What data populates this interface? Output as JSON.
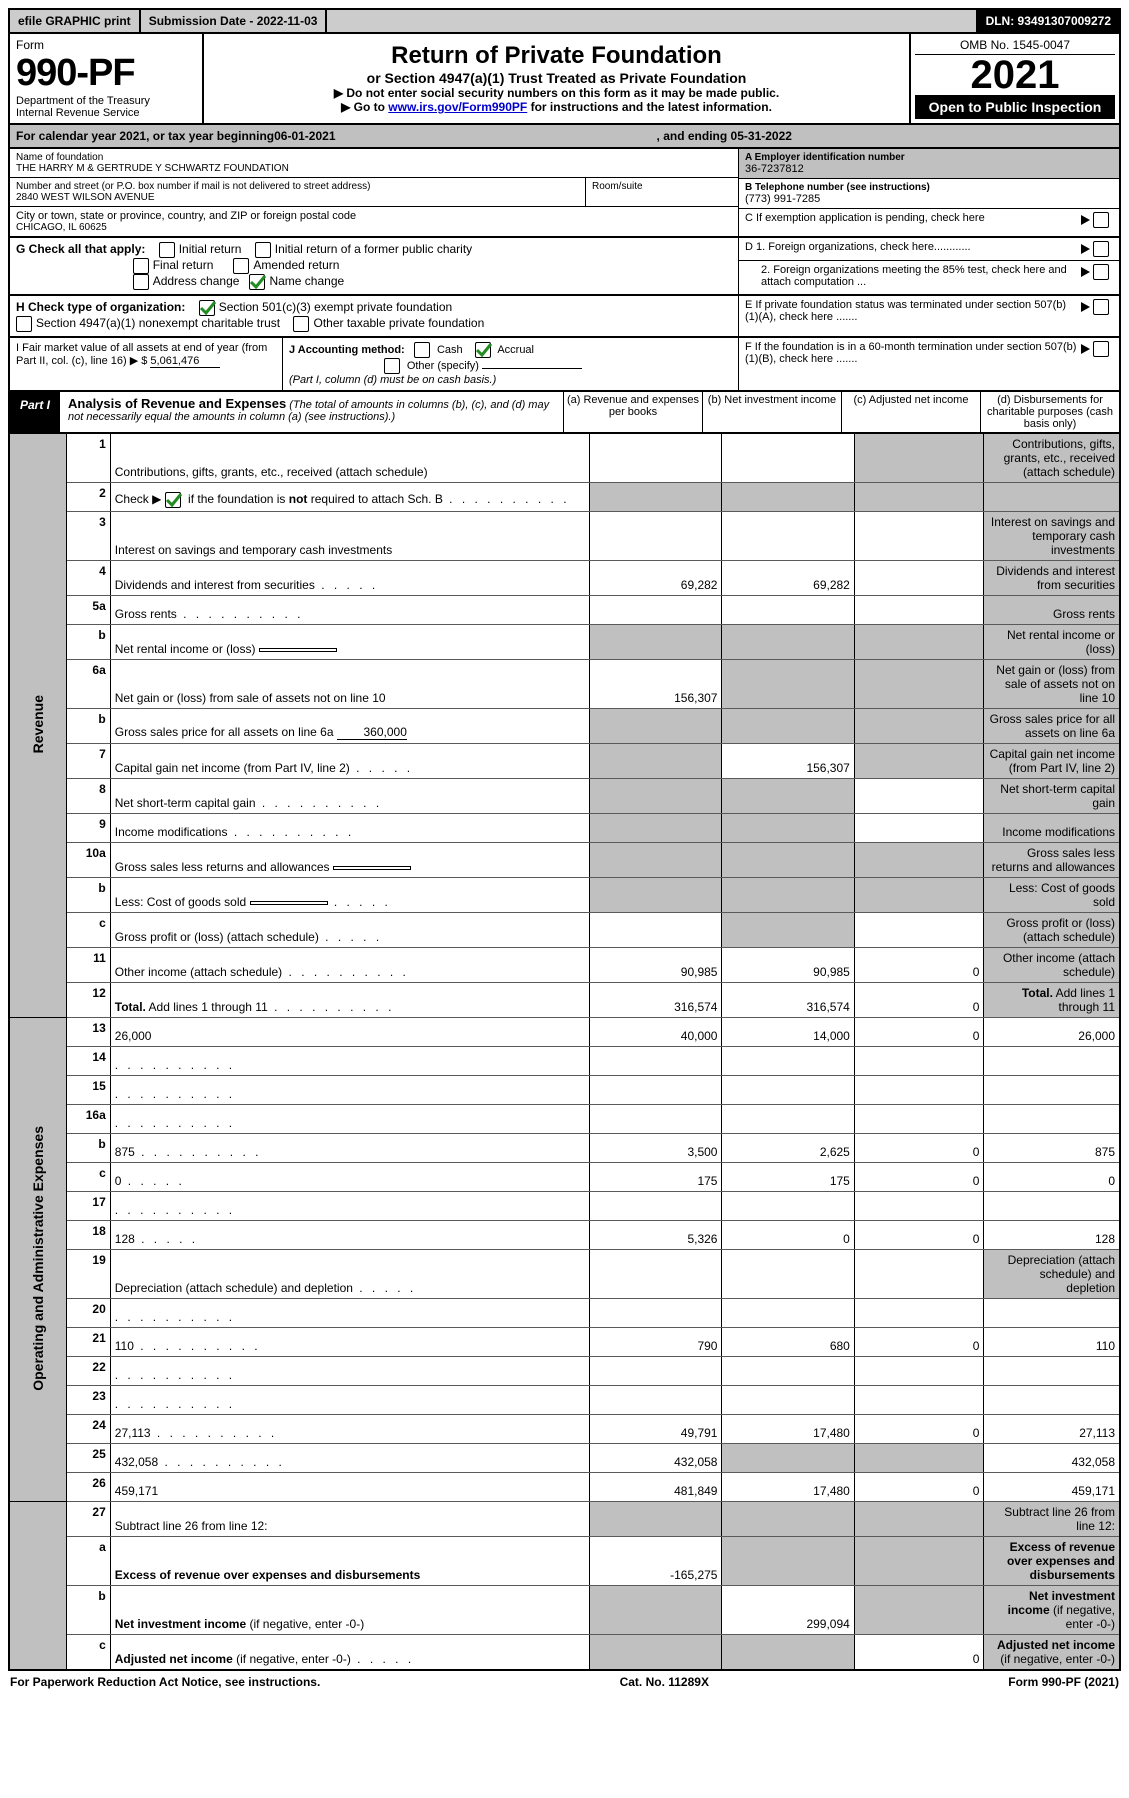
{
  "colors": {
    "header_gray": "#cccccc",
    "shade_gray": "#c0c0c0",
    "black": "#000000",
    "white": "#ffffff",
    "link_blue": "#0000cc",
    "check_green": "#228b22"
  },
  "top_bar": {
    "efile": "efile GRAPHIC print",
    "sub_date_label": "Submission Date - 2022-11-03",
    "dln": "DLN: 93491307009272"
  },
  "header": {
    "form_word": "Form",
    "form_num": "990-PF",
    "dept": "Department of the Treasury",
    "irs": "Internal Revenue Service",
    "title": "Return of Private Foundation",
    "subtitle": "or Section 4947(a)(1) Trust Treated as Private Foundation",
    "warn1": "▶ Do not enter social security numbers on this form as it may be made public.",
    "warn2_pre": "▶ Go to ",
    "warn2_link": "www.irs.gov/Form990PF",
    "warn2_post": " for instructions and the latest information.",
    "omb": "OMB No. 1545-0047",
    "year": "2021",
    "open": "Open to Public Inspection"
  },
  "calendar": {
    "pre": "For calendar year 2021, or tax year beginning ",
    "begin": "06-01-2021",
    "mid": ", and ending ",
    "end": "05-31-2022"
  },
  "entity": {
    "name_label": "Name of foundation",
    "name": "THE HARRY M & GERTRUDE Y SCHWARTZ FOUNDATION",
    "addr_label": "Number and street (or P.O. box number if mail is not delivered to street address)",
    "addr": "2840 WEST WILSON AVENUE",
    "room_label": "Room/suite",
    "city_label": "City or town, state or province, country, and ZIP or foreign postal code",
    "city": "CHICAGO, IL  60625",
    "a_label": "A Employer identification number",
    "a_val": "36-7237812",
    "b_label": "B Telephone number (see instructions)",
    "b_val": "(773) 991-7285",
    "c_label": "C If exemption application is pending, check here"
  },
  "g": {
    "label": "G Check all that apply:",
    "initial": "Initial return",
    "initial_former": "Initial return of a former public charity",
    "final": "Final return",
    "amended": "Amended return",
    "addr_change": "Address change",
    "name_change": "Name change",
    "name_change_checked": true
  },
  "h": {
    "label": "H Check type of organization:",
    "s501": "Section 501(c)(3) exempt private foundation",
    "s501_checked": true,
    "s4947": "Section 4947(a)(1) nonexempt charitable trust",
    "other_tax": "Other taxable private foundation"
  },
  "i": {
    "pre": "I Fair market value of all assets at end of year (from Part II, col. (c), line 16) ▶ $",
    "val": "5,061,476"
  },
  "j": {
    "label": "J Accounting method:",
    "cash": "Cash",
    "accrual": "Accrual",
    "accrual_checked": true,
    "other": "Other (specify)",
    "note": "(Part I, column (d) must be on cash basis.)"
  },
  "d": {
    "d1": "D 1. Foreign organizations, check here............",
    "d2": "2. Foreign organizations meeting the 85% test, check here and attach computation ...",
    "e": "E  If private foundation status was terminated under section 507(b)(1)(A), check here .......",
    "f": "F  If the foundation is in a 60-month termination under section 507(b)(1)(B), check here ......."
  },
  "part1": {
    "label": "Part I",
    "title": "Analysis of Revenue and Expenses",
    "title_note": " (The total of amounts in columns (b), (c), and (d) may not necessarily equal the amounts in column (a) (see instructions).)",
    "col_a": "(a)   Revenue and expenses per books",
    "col_b": "(b)   Net investment income",
    "col_c": "(c)  Adjusted net income",
    "col_d": "(d)  Disbursements for charitable purposes (cash basis only)"
  },
  "side_labels": {
    "revenue": "Revenue",
    "expenses": "Operating and Administrative Expenses"
  },
  "rows": [
    {
      "n": "1",
      "d": "Contributions, gifts, grants, etc., received (attach schedule)",
      "a": "",
      "b": "",
      "c_shade": true,
      "d_shade": true
    },
    {
      "n": "2",
      "d_html": "Check ▶ [CB] if the foundation is <b>not</b> required to attach Sch. B",
      "dots": true,
      "a_shade": true,
      "b_shade": true,
      "c_shade": true,
      "d_shade": true,
      "cb_checked": true
    },
    {
      "n": "3",
      "d": "Interest on savings and temporary cash investments",
      "a": "",
      "b": "",
      "c": "",
      "d_shade": true
    },
    {
      "n": "4",
      "d": "Dividends and interest from securities",
      "dots": "s",
      "a": "69,282",
      "b": "69,282",
      "c": "",
      "d_shade": true
    },
    {
      "n": "5a",
      "d": "Gross rents",
      "dots": true,
      "a": "",
      "b": "",
      "c": "",
      "d_shade": true
    },
    {
      "n": "b",
      "d": "Net rental income or (loss)",
      "inline_box": "",
      "a_shade": true,
      "b_shade": true,
      "c_shade": true,
      "d_shade": true
    },
    {
      "n": "6a",
      "d": "Net gain or (loss) from sale of assets not on line 10",
      "a": "156,307",
      "b_shade": true,
      "c_shade": true,
      "d_shade": true
    },
    {
      "n": "b",
      "d": "Gross sales price for all assets on line 6a",
      "inline_underline": "360,000",
      "a_shade": true,
      "b_shade": true,
      "c_shade": true,
      "d_shade": true
    },
    {
      "n": "7",
      "d": "Capital gain net income (from Part IV, line 2)",
      "dots": "s",
      "a_shade": true,
      "b": "156,307",
      "c_shade": true,
      "d_shade": true
    },
    {
      "n": "8",
      "d": "Net short-term capital gain",
      "dots": true,
      "a_shade": true,
      "b_shade": true,
      "c": "",
      "d_shade": true
    },
    {
      "n": "9",
      "d": "Income modifications",
      "dots": true,
      "a_shade": true,
      "b_shade": true,
      "c": "",
      "d_shade": true
    },
    {
      "n": "10a",
      "d": "Gross sales less returns and allowances",
      "inline_box": "",
      "a_shade": true,
      "b_shade": true,
      "c_shade": true,
      "d_shade": true
    },
    {
      "n": "b",
      "d": "Less: Cost of goods sold",
      "dots": "s",
      "inline_box": "",
      "a_shade": true,
      "b_shade": true,
      "c_shade": true,
      "d_shade": true
    },
    {
      "n": "c",
      "d": "Gross profit or (loss) (attach schedule)",
      "dots": "s",
      "a": "",
      "b_shade": true,
      "c": "",
      "d_shade": true
    },
    {
      "n": "11",
      "d": "Other income (attach schedule)",
      "dots": true,
      "a": "90,985",
      "b": "90,985",
      "c": "0",
      "d_shade": true
    },
    {
      "n": "12",
      "d": "<b>Total.</b> Add lines 1 through 11",
      "dots": true,
      "a": "316,574",
      "b": "316,574",
      "c": "0",
      "d_shade": true,
      "section_end": "revenue"
    },
    {
      "n": "13",
      "d": "26,000",
      "a": "40,000",
      "b": "14,000",
      "c": "0"
    },
    {
      "n": "14",
      "d": "",
      "dots": true,
      "a": "",
      "b": "",
      "c": ""
    },
    {
      "n": "15",
      "d": "",
      "dots": true,
      "a": "",
      "b": "",
      "c": ""
    },
    {
      "n": "16a",
      "d": "",
      "dots": true,
      "a": "",
      "b": "",
      "c": ""
    },
    {
      "n": "b",
      "d": "875",
      "dots": true,
      "a": "3,500",
      "b": "2,625",
      "c": "0"
    },
    {
      "n": "c",
      "d": "0",
      "dots": "s",
      "a": "175",
      "b": "175",
      "c": "0"
    },
    {
      "n": "17",
      "d": "",
      "dots": true,
      "a": "",
      "b": "",
      "c": ""
    },
    {
      "n": "18",
      "d": "128",
      "dots": "s",
      "a": "5,326",
      "b": "0",
      "c": "0"
    },
    {
      "n": "19",
      "d": "Depreciation (attach schedule) and depletion",
      "dots": "s",
      "a": "",
      "b": "",
      "c": "",
      "d_shade": true
    },
    {
      "n": "20",
      "d": "",
      "dots": true,
      "a": "",
      "b": "",
      "c": ""
    },
    {
      "n": "21",
      "d": "110",
      "dots": true,
      "a": "790",
      "b": "680",
      "c": "0"
    },
    {
      "n": "22",
      "d": "",
      "dots": true,
      "a": "",
      "b": "",
      "c": ""
    },
    {
      "n": "23",
      "d": "",
      "dots": true,
      "a": "",
      "b": "",
      "c": ""
    },
    {
      "n": "24",
      "d": "27,113",
      "dots": true,
      "a": "49,791",
      "b": "17,480",
      "c": "0"
    },
    {
      "n": "25",
      "d": "432,058",
      "dots": true,
      "a": "432,058",
      "b_shade": true,
      "c_shade": true
    },
    {
      "n": "26",
      "d": "459,171",
      "a": "481,849",
      "b": "17,480",
      "c": "0",
      "section_end": "expenses"
    },
    {
      "n": "27",
      "d": "Subtract line 26 from line 12:",
      "a_shade": true,
      "b_shade": true,
      "c_shade": true,
      "d_shade": true
    },
    {
      "n": "a",
      "d": "<b>Excess of revenue over expenses and disbursements</b>",
      "a": "-165,275",
      "b_shade": true,
      "c_shade": true,
      "d_shade": true
    },
    {
      "n": "b",
      "d": "<b>Net investment income</b> (if negative, enter -0-)",
      "a_shade": true,
      "b": "299,094",
      "c_shade": true,
      "d_shade": true
    },
    {
      "n": "c",
      "d": "<b>Adjusted net income</b> (if negative, enter -0-)",
      "dots": "s",
      "a_shade": true,
      "b_shade": true,
      "c": "0",
      "d_shade": true
    }
  ],
  "footer": {
    "left": "For Paperwork Reduction Act Notice, see instructions.",
    "mid": "Cat. No. 11289X",
    "right_pre": "Form ",
    "right_form": "990-PF",
    "right_post": " (2021)"
  }
}
